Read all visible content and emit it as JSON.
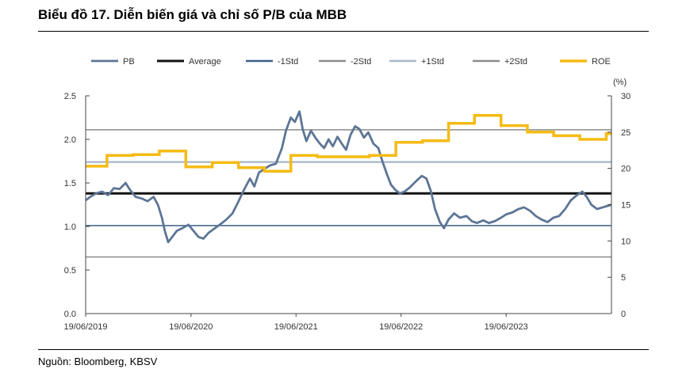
{
  "header": {
    "title": "Biểu đồ 17. Diễn biến giá và chỉ số P/B của MBB"
  },
  "footer": {
    "source": "Nguồn: Bloomberg, KBSV"
  },
  "chart_data": {
    "type": "line",
    "title": "Biểu đồ 17. Diễn biến giá và chỉ số P/B của MBB",
    "legend_position": "top",
    "grid": false,
    "x_ticks": [
      "19/06/2019",
      "19/06/2020",
      "19/06/2021",
      "19/06/2022",
      "19/06/2023"
    ],
    "x_range": [
      "2019-06-19",
      "2024-06-19"
    ],
    "y_left": {
      "min": 0,
      "max": 2.5,
      "ticks": [
        "0.0",
        "0.5",
        "1.0",
        "1.5",
        "2.0",
        "2.5"
      ]
    },
    "y_right": {
      "min": 0,
      "max": 30,
      "unit_label": "(%)",
      "ticks": [
        "0",
        "5",
        "10",
        "15",
        "20",
        "25",
        "30"
      ]
    },
    "colors": {
      "pb": "#5d7596",
      "average": "#111111",
      "minus1std": "#3a5f85",
      "minus2std": "#8c8c8c",
      "plus1std": "#a9b6c7",
      "plus2std": "#8c8c8c",
      "roe": "#f5bb14"
    },
    "series": [
      {
        "name": "PB",
        "axis": "left",
        "color": "#5d7596",
        "points": [
          [
            "2019-06-19",
            1.3
          ],
          [
            "2019-07-05",
            1.34
          ],
          [
            "2019-07-25",
            1.38
          ],
          [
            "2019-08-15",
            1.4
          ],
          [
            "2019-09-05",
            1.36
          ],
          [
            "2019-09-25",
            1.44
          ],
          [
            "2019-10-15",
            1.43
          ],
          [
            "2019-11-05",
            1.5
          ],
          [
            "2019-11-20",
            1.42
          ],
          [
            "2019-12-10",
            1.34
          ],
          [
            "2020-01-01",
            1.32
          ],
          [
            "2020-01-20",
            1.29
          ],
          [
            "2020-02-10",
            1.34
          ],
          [
            "2020-02-25",
            1.25
          ],
          [
            "2020-03-10",
            1.1
          ],
          [
            "2020-03-20",
            0.95
          ],
          [
            "2020-04-01",
            0.82
          ],
          [
            "2020-04-15",
            0.88
          ],
          [
            "2020-05-01",
            0.95
          ],
          [
            "2020-05-20",
            0.98
          ],
          [
            "2020-06-10",
            1.02
          ],
          [
            "2020-06-25",
            0.96
          ],
          [
            "2020-07-15",
            0.88
          ],
          [
            "2020-08-01",
            0.86
          ],
          [
            "2020-08-20",
            0.93
          ],
          [
            "2020-09-10",
            0.98
          ],
          [
            "2020-10-01",
            1.03
          ],
          [
            "2020-10-20",
            1.08
          ],
          [
            "2020-11-10",
            1.15
          ],
          [
            "2020-11-30",
            1.28
          ],
          [
            "2020-12-20",
            1.42
          ],
          [
            "2021-01-10",
            1.55
          ],
          [
            "2021-01-25",
            1.46
          ],
          [
            "2021-02-10",
            1.62
          ],
          [
            "2021-03-01",
            1.66
          ],
          [
            "2021-03-20",
            1.7
          ],
          [
            "2021-04-10",
            1.72
          ],
          [
            "2021-05-01",
            1.9
          ],
          [
            "2021-05-15",
            2.1
          ],
          [
            "2021-06-01",
            2.25
          ],
          [
            "2021-06-15",
            2.2
          ],
          [
            "2021-07-01",
            2.32
          ],
          [
            "2021-07-12",
            2.12
          ],
          [
            "2021-07-25",
            1.98
          ],
          [
            "2021-08-10",
            2.1
          ],
          [
            "2021-08-25",
            2.02
          ],
          [
            "2021-09-10",
            1.95
          ],
          [
            "2021-09-25",
            1.9
          ],
          [
            "2021-10-10",
            2.0
          ],
          [
            "2021-10-25",
            1.92
          ],
          [
            "2021-11-10",
            2.03
          ],
          [
            "2021-11-25",
            1.95
          ],
          [
            "2021-12-10",
            1.88
          ],
          [
            "2021-12-25",
            2.05
          ],
          [
            "2022-01-10",
            2.15
          ],
          [
            "2022-01-25",
            2.12
          ],
          [
            "2022-02-10",
            2.02
          ],
          [
            "2022-02-25",
            2.08
          ],
          [
            "2022-03-15",
            1.95
          ],
          [
            "2022-04-01",
            1.9
          ],
          [
            "2022-04-15",
            1.75
          ],
          [
            "2022-05-01",
            1.6
          ],
          [
            "2022-05-15",
            1.48
          ],
          [
            "2022-05-30",
            1.42
          ],
          [
            "2022-06-15",
            1.38
          ],
          [
            "2022-07-01",
            1.4
          ],
          [
            "2022-07-20",
            1.45
          ],
          [
            "2022-08-10",
            1.52
          ],
          [
            "2022-08-30",
            1.58
          ],
          [
            "2022-09-15",
            1.55
          ],
          [
            "2022-10-01",
            1.4
          ],
          [
            "2022-10-15",
            1.2
          ],
          [
            "2022-11-01",
            1.05
          ],
          [
            "2022-11-15",
            0.98
          ],
          [
            "2022-12-01",
            1.08
          ],
          [
            "2022-12-20",
            1.15
          ],
          [
            "2023-01-10",
            1.1
          ],
          [
            "2023-02-01",
            1.12
          ],
          [
            "2023-02-20",
            1.06
          ],
          [
            "2023-03-10",
            1.04
          ],
          [
            "2023-04-01",
            1.07
          ],
          [
            "2023-04-20",
            1.04
          ],
          [
            "2023-05-10",
            1.06
          ],
          [
            "2023-06-01",
            1.1
          ],
          [
            "2023-06-20",
            1.14
          ],
          [
            "2023-07-10",
            1.16
          ],
          [
            "2023-08-01",
            1.2
          ],
          [
            "2023-08-20",
            1.22
          ],
          [
            "2023-09-10",
            1.18
          ],
          [
            "2023-09-30",
            1.12
          ],
          [
            "2023-10-20",
            1.08
          ],
          [
            "2023-11-10",
            1.05
          ],
          [
            "2023-11-30",
            1.1
          ],
          [
            "2023-12-20",
            1.12
          ],
          [
            "2024-01-10",
            1.2
          ],
          [
            "2024-01-30",
            1.3
          ],
          [
            "2024-02-20",
            1.36
          ],
          [
            "2024-03-10",
            1.4
          ],
          [
            "2024-03-25",
            1.34
          ],
          [
            "2024-04-10",
            1.25
          ],
          [
            "2024-04-30",
            1.2
          ],
          [
            "2024-05-20",
            1.22
          ],
          [
            "2024-06-19",
            1.25
          ]
        ]
      },
      {
        "name": "Average",
        "axis": "left",
        "color": "#111111",
        "value": 1.38
      },
      {
        "name": "-1Std",
        "axis": "left",
        "color": "#3a5f85",
        "value": 1.01
      },
      {
        "name": "-2Std",
        "axis": "left",
        "color": "#8c8c8c",
        "value": 0.65
      },
      {
        "name": "+1Std",
        "axis": "left",
        "color": "#a9b6c7",
        "value": 1.74
      },
      {
        "name": "+2Std",
        "axis": "left",
        "color": "#8c8c8c",
        "value": 2.11
      },
      {
        "name": "ROE",
        "axis": "right",
        "color": "#f5bb14",
        "step": true,
        "points": [
          [
            "2019-06-19",
            20.3
          ],
          [
            "2019-09-01",
            21.8
          ],
          [
            "2019-12-01",
            21.9
          ],
          [
            "2020-03-01",
            22.4
          ],
          [
            "2020-06-01",
            20.2
          ],
          [
            "2020-09-01",
            20.8
          ],
          [
            "2020-12-01",
            20.1
          ],
          [
            "2021-03-01",
            19.6
          ],
          [
            "2021-06-01",
            21.8
          ],
          [
            "2021-09-01",
            21.6
          ],
          [
            "2021-12-01",
            21.6
          ],
          [
            "2022-03-01",
            21.8
          ],
          [
            "2022-06-01",
            23.6
          ],
          [
            "2022-09-01",
            23.8
          ],
          [
            "2022-12-01",
            26.2
          ],
          [
            "2023-03-01",
            27.3
          ],
          [
            "2023-06-01",
            25.9
          ],
          [
            "2023-09-01",
            25.0
          ],
          [
            "2023-12-01",
            24.5
          ],
          [
            "2024-03-01",
            24.0
          ],
          [
            "2024-06-01",
            24.8
          ],
          [
            "2024-06-19",
            24.8
          ]
        ]
      }
    ]
  }
}
